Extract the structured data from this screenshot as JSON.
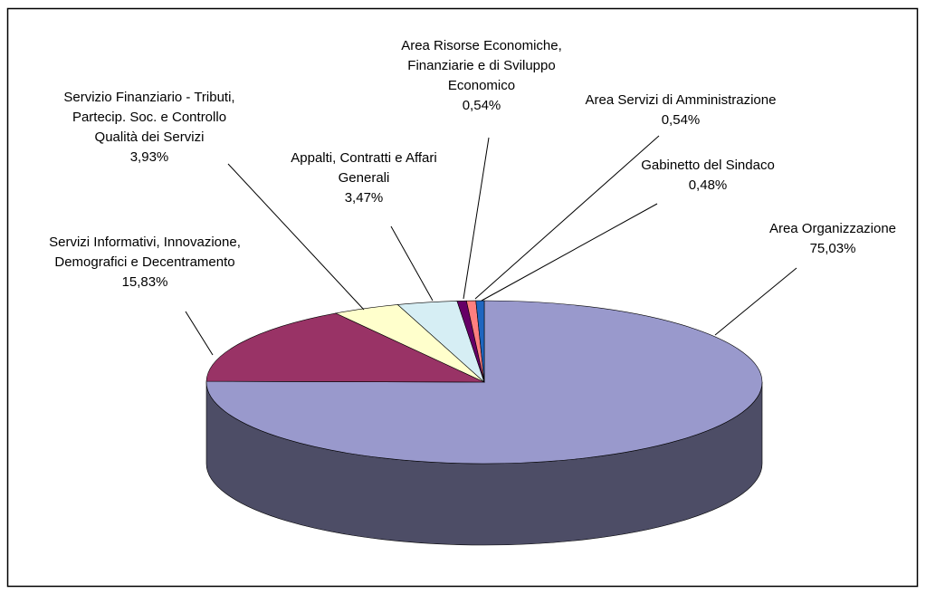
{
  "chart_data": {
    "type": "pie3d",
    "categories": [
      "Area Organizzazione",
      "Servizi Informativi, Innovazione, Demografici e Decentramento",
      "Servizio Finanziario - Tributi, Partecip. Soc. e Controllo Qualità dei Servizi",
      "Appalti, Contratti e Affari Generali",
      "Area Risorse Economiche, Finanziarie e di Sviluppo Economico",
      "Area Servizi di Amministrazione",
      "Gabinetto del Sindaco"
    ],
    "values": [
      75.03,
      15.83,
      3.93,
      3.47,
      0.54,
      0.54,
      0.48
    ],
    "value_labels": [
      "75,03%",
      "15,83%",
      "3,93%",
      "3,47%",
      "0,54%",
      "0,54%",
      "0,48%"
    ],
    "colors": [
      "#9999cc",
      "#993366",
      "#ffffcc",
      "#d6eef4",
      "#660066",
      "#ff7f7f",
      "#1f66c0"
    ]
  }
}
